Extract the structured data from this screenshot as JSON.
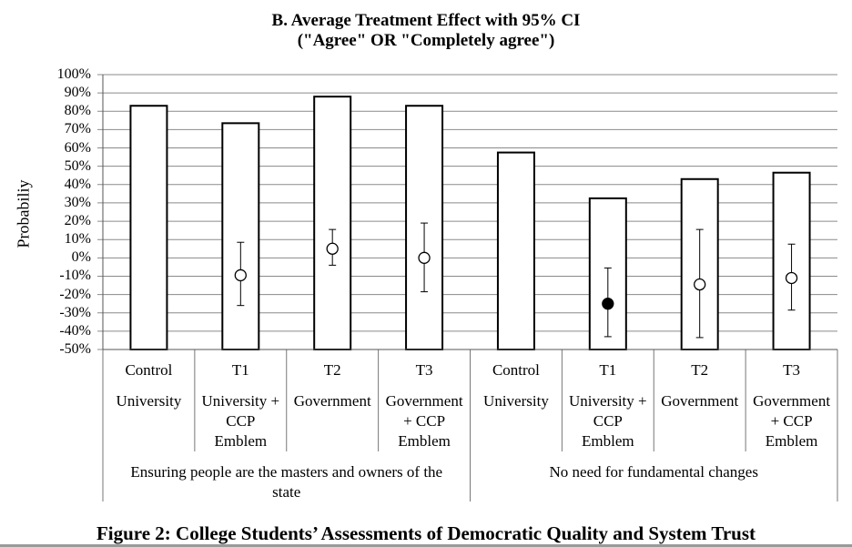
{
  "chart_data": {
    "type": "bar",
    "title": "B. Average Treatment Effect with 95% CI",
    "subtitle": "(\"Agree\" OR \"Completely agree\")",
    "ylabel": "Probabiliy",
    "ylim": [
      -50,
      100
    ],
    "yticks": [
      "-50%",
      "-40%",
      "-30%",
      "-20%",
      "-10%",
      "0%",
      "10%",
      "20%",
      "30%",
      "40%",
      "50%",
      "60%",
      "70%",
      "80%",
      "90%",
      "100%"
    ],
    "grid": true,
    "categories": [
      {
        "treatment": "Control",
        "source": "University",
        "group": "Ensuring people are the masters and owners of the state"
      },
      {
        "treatment": "T1",
        "source": "University + CCP Emblem",
        "group": "Ensuring people are the masters and owners of the state"
      },
      {
        "treatment": "T2",
        "source": "Government",
        "group": "Ensuring people are the masters and owners of the state"
      },
      {
        "treatment": "T3",
        "source": "Government + CCP Emblem",
        "group": "Ensuring people are the masters and owners of the state"
      },
      {
        "treatment": "Control",
        "source": "University",
        "group": "No need for fundamental changes"
      },
      {
        "treatment": "T1",
        "source": "University + CCP Emblem",
        "group": "No need for fundamental changes"
      },
      {
        "treatment": "T2",
        "source": "Government",
        "group": "No need for fundamental changes"
      },
      {
        "treatment": "T3",
        "source": "Government + CCP Emblem",
        "group": "No need for fundamental changes"
      }
    ],
    "bars": [
      83,
      73.5,
      88,
      83,
      57.5,
      32.5,
      43,
      46.5
    ],
    "effects": [
      null,
      {
        "estimate": -9.5,
        "lower": -26,
        "upper": 8.5,
        "significant": false
      },
      {
        "estimate": 5,
        "lower": -4,
        "upper": 15.5,
        "significant": false
      },
      {
        "estimate": 0,
        "lower": -18.5,
        "upper": 19,
        "significant": false
      },
      null,
      {
        "estimate": -25,
        "lower": -43,
        "upper": -5.5,
        "significant": true
      },
      {
        "estimate": -14.5,
        "lower": -43.5,
        "upper": 15.5,
        "significant": false
      },
      {
        "estimate": -11,
        "lower": -28.5,
        "upper": 7.5,
        "significant": false
      }
    ]
  },
  "table": {
    "row1": [
      "Control",
      "T1",
      "T2",
      "T3",
      "Control",
      "T1",
      "T2",
      "T3"
    ],
    "row2": [
      [
        "University"
      ],
      [
        "University +",
        "CCP",
        "Emblem"
      ],
      [
        "Government"
      ],
      [
        "Government",
        "+ CCP",
        "Emblem"
      ],
      [
        "University"
      ],
      [
        "University +",
        "CCP",
        "Emblem"
      ],
      [
        "Government"
      ],
      [
        "Government",
        "+ CCP",
        "Emblem"
      ]
    ],
    "groups": [
      [
        "Ensuring people are the masters and owners of the",
        "state"
      ],
      [
        "No need for fundamental changes"
      ]
    ]
  },
  "caption": "Figure 2: College Students’ Assessments of Democratic Quality and System Trust"
}
